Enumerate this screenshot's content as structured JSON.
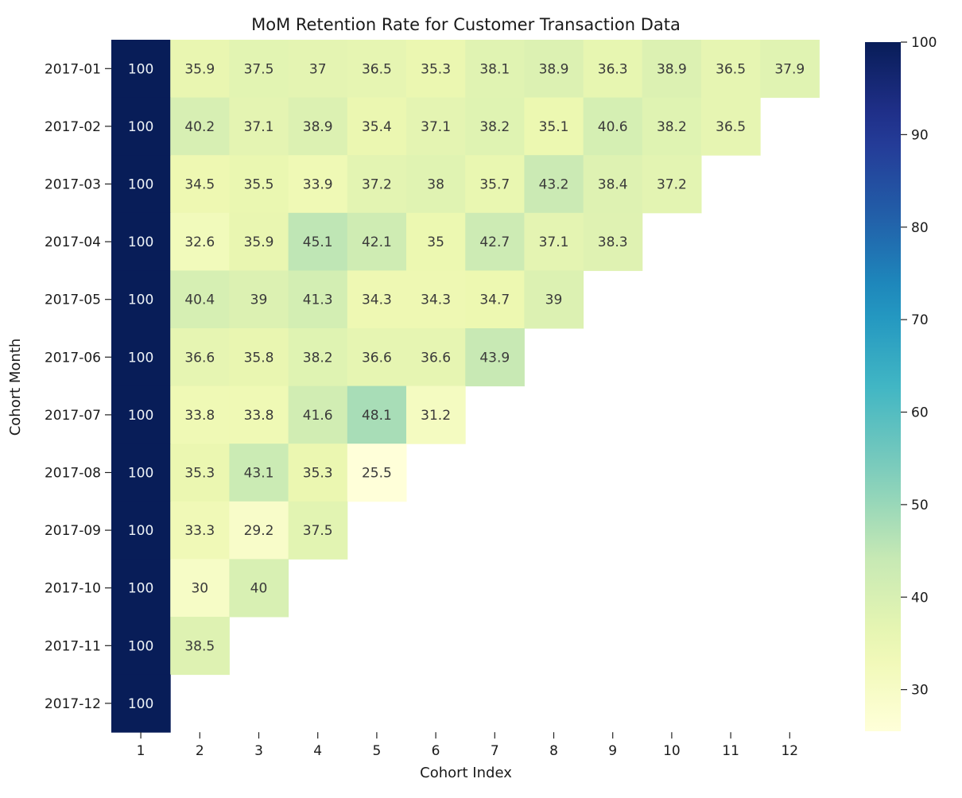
{
  "chart_data": {
    "type": "heatmap",
    "title": "MoM Retention Rate for Customer Transaction Data",
    "xlabel": "Cohort Index",
    "ylabel": "Cohort Month",
    "x_categories": [
      "1",
      "2",
      "3",
      "4",
      "5",
      "6",
      "7",
      "8",
      "9",
      "10",
      "11",
      "12"
    ],
    "y_categories": [
      "2017-01",
      "2017-02",
      "2017-03",
      "2017-04",
      "2017-05",
      "2017-06",
      "2017-07",
      "2017-08",
      "2017-09",
      "2017-10",
      "2017-11",
      "2017-12"
    ],
    "values": [
      [
        100,
        35.9,
        37.5,
        37,
        36.5,
        35.3,
        38.1,
        38.9,
        36.3,
        38.9,
        36.5,
        37.9
      ],
      [
        100,
        40.2,
        37.1,
        38.9,
        35.4,
        37.1,
        38.2,
        35.1,
        40.6,
        38.2,
        36.5
      ],
      [
        100,
        34.5,
        35.5,
        33.9,
        37.2,
        38,
        35.7,
        43.2,
        38.4,
        37.2
      ],
      [
        100,
        32.6,
        35.9,
        45.1,
        42.1,
        35,
        42.7,
        37.1,
        38.3
      ],
      [
        100,
        40.4,
        39,
        41.3,
        34.3,
        34.3,
        34.7,
        39
      ],
      [
        100,
        36.6,
        35.8,
        38.2,
        36.6,
        36.6,
        43.9
      ],
      [
        100,
        33.8,
        33.8,
        41.6,
        48.1,
        31.2
      ],
      [
        100,
        35.3,
        43.1,
        35.3,
        25.5
      ],
      [
        100,
        33.3,
        29.2,
        37.5
      ],
      [
        100,
        30,
        40
      ],
      [
        100,
        38.5
      ],
      [
        100
      ]
    ],
    "colorscale": "YlGnBu",
    "colorbar": {
      "min": 25.5,
      "max": 100,
      "ticks": [
        30,
        40,
        50,
        60,
        70,
        80,
        90,
        100
      ]
    },
    "grid": false
  }
}
